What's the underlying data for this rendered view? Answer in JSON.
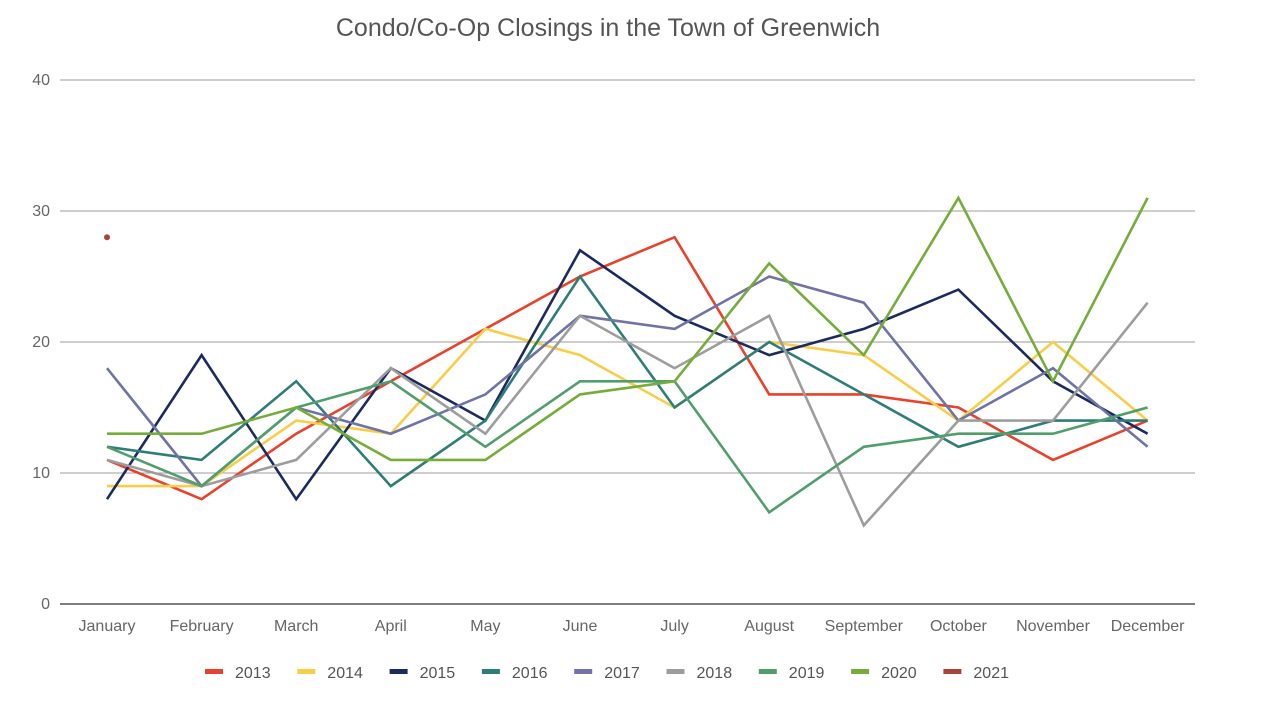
{
  "chart_data": {
    "type": "line",
    "title": "Condo/Co-Op Closings in the Town of Greenwich",
    "xlabel": "",
    "ylabel": "",
    "ylim": [
      0,
      40
    ],
    "yticks": [
      0,
      10,
      20,
      30,
      40
    ],
    "grid": true,
    "legend_position": "bottom",
    "categories": [
      "January",
      "February",
      "March",
      "April",
      "May",
      "June",
      "July",
      "August",
      "September",
      "October",
      "November",
      "December"
    ],
    "series": [
      {
        "name": "2013",
        "color": "#e8412c",
        "values": [
          11,
          8,
          13,
          17,
          21,
          25,
          28,
          16,
          16,
          15,
          11,
          14
        ]
      },
      {
        "name": "2014",
        "color": "#f8cd48",
        "values": [
          9,
          9,
          14,
          13,
          21,
          19,
          15,
          20,
          19,
          14,
          20,
          14
        ]
      },
      {
        "name": "2015",
        "color": "#1b2b5e",
        "values": [
          8,
          19,
          8,
          18,
          14,
          27,
          22,
          19,
          21,
          24,
          17,
          13
        ]
      },
      {
        "name": "2016",
        "color": "#2f7d78",
        "values": [
          12,
          11,
          17,
          9,
          14,
          25,
          15,
          20,
          16,
          12,
          14,
          14
        ]
      },
      {
        "name": "2017",
        "color": "#6f73a5",
        "values": [
          18,
          9,
          15,
          13,
          16,
          22,
          21,
          25,
          23,
          14,
          18,
          12
        ]
      },
      {
        "name": "2018",
        "color": "#9d9d9d",
        "values": [
          11,
          9,
          11,
          18,
          13,
          22,
          18,
          22,
          6,
          14,
          14,
          23
        ]
      },
      {
        "name": "2019",
        "color": "#519e6d",
        "values": [
          12,
          9,
          15,
          17,
          12,
          17,
          17,
          7,
          12,
          13,
          13,
          15
        ]
      },
      {
        "name": "2020",
        "color": "#76ad3a",
        "values": [
          13,
          13,
          15,
          11,
          11,
          16,
          17,
          26,
          19,
          31,
          17,
          31
        ]
      },
      {
        "name": "2021",
        "color": "#a8443a",
        "values": [
          28,
          null,
          null,
          null,
          null,
          null,
          null,
          null,
          null,
          null,
          null,
          null
        ]
      }
    ]
  }
}
